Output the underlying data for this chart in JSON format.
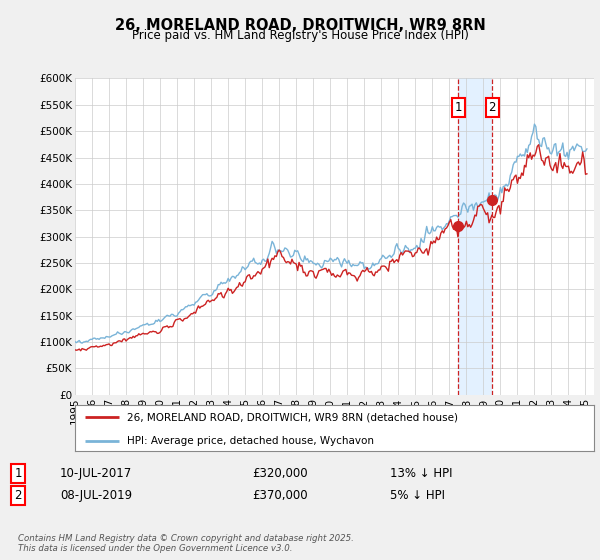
{
  "title": "26, MORELAND ROAD, DROITWICH, WR9 8RN",
  "subtitle": "Price paid vs. HM Land Registry's House Price Index (HPI)",
  "xlim": [
    1995.0,
    2025.5
  ],
  "ylim": [
    0,
    600000
  ],
  "yticks": [
    0,
    50000,
    100000,
    150000,
    200000,
    250000,
    300000,
    350000,
    400000,
    450000,
    500000,
    550000,
    600000
  ],
  "ytick_labels": [
    "£0",
    "£50K",
    "£100K",
    "£150K",
    "£200K",
    "£250K",
    "£300K",
    "£350K",
    "£400K",
    "£450K",
    "£500K",
    "£550K",
    "£600K"
  ],
  "xticks": [
    1995,
    1996,
    1997,
    1998,
    1999,
    2000,
    2001,
    2002,
    2003,
    2004,
    2005,
    2006,
    2007,
    2008,
    2009,
    2010,
    2011,
    2012,
    2013,
    2014,
    2015,
    2016,
    2017,
    2018,
    2019,
    2020,
    2021,
    2022,
    2023,
    2024,
    2025
  ],
  "hpi_color": "#7ab4d8",
  "price_color": "#cc2222",
  "vline_color": "#cc2222",
  "shade_color": "#ddeeff",
  "bg_color": "#f0f0f0",
  "plot_bg": "#ffffff",
  "legend_entries": [
    "26, MORELAND ROAD, DROITWICH, WR9 8RN (detached house)",
    "HPI: Average price, detached house, Wychavon"
  ],
  "sale1_date": 2017.53,
  "sale1_price": 320000,
  "sale1_label": "1",
  "sale1_text": "10-JUL-2017",
  "sale1_val": "£320,000",
  "sale1_pct": "13% ↓ HPI",
  "sale2_date": 2019.52,
  "sale2_price": 370000,
  "sale2_label": "2",
  "sale2_text": "08-JUL-2019",
  "sale2_val": "£370,000",
  "sale2_pct": "5% ↓ HPI",
  "footnote": "Contains HM Land Registry data © Crown copyright and database right 2025.\nThis data is licensed under the Open Government Licence v3.0."
}
